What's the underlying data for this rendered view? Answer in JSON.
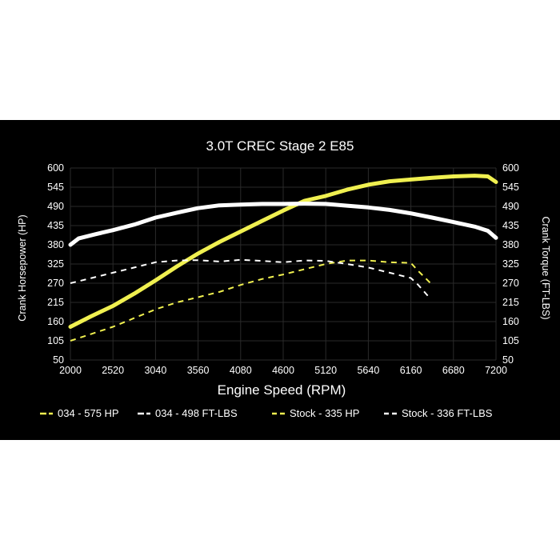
{
  "chart_data": {
    "type": "line",
    "title": "3.0T CREC Stage 2 E85",
    "xlabel": "Engine Speed (RPM)",
    "ylabel": "Crank Horsepower (HP)",
    "ylabel_right": "Crank Torque (FT-LBS)",
    "xlim": [
      2000,
      7200
    ],
    "ylim": [
      50,
      600
    ],
    "x_ticks": [
      "2000",
      "2520",
      "3040",
      "3560",
      "4080",
      "4600",
      "5120",
      "5640",
      "6160",
      "6680",
      "7200"
    ],
    "y_ticks": [
      "600",
      "545",
      "490",
      "435",
      "380",
      "325",
      "270",
      "215",
      "160",
      "105",
      "50"
    ],
    "y_ticks_right": [
      "600",
      "545",
      "490",
      "435",
      "380",
      "325",
      "270",
      "215",
      "160",
      "105",
      "50"
    ],
    "grid": true,
    "legend_position": "bottom",
    "series": [
      {
        "name": "034 - 575 HP",
        "color": "#f0f050",
        "style": "solid",
        "x": [
          2000,
          2250,
          2520,
          2780,
          3040,
          3300,
          3560,
          3820,
          4080,
          4340,
          4600,
          4860,
          5120,
          5380,
          5640,
          5900,
          6160,
          6420,
          6680,
          6940,
          7100,
          7200
        ],
        "y": [
          145,
          175,
          205,
          240,
          278,
          318,
          355,
          388,
          418,
          448,
          478,
          506,
          520,
          538,
          552,
          562,
          567,
          572,
          576,
          578,
          576,
          560
        ]
      },
      {
        "name": "034 - 498 FT-LBS",
        "color": "#ffffff",
        "style": "solid",
        "x": [
          2000,
          2100,
          2300,
          2520,
          2780,
          3040,
          3300,
          3560,
          3820,
          4080,
          4340,
          4600,
          4860,
          5120,
          5380,
          5640,
          5900,
          6160,
          6420,
          6680,
          6940,
          7100,
          7200
        ],
        "y": [
          380,
          398,
          410,
          422,
          438,
          458,
          472,
          485,
          493,
          495,
          497,
          497,
          498,
          497,
          492,
          487,
          480,
          470,
          458,
          445,
          432,
          420,
          400
        ]
      },
      {
        "name": "Stock - 335 HP",
        "color": "#f0f050",
        "style": "dashed",
        "x": [
          2000,
          2260,
          2520,
          2780,
          3040,
          3300,
          3560,
          3820,
          4080,
          4340,
          4600,
          4860,
          5120,
          5380,
          5640,
          5900,
          6160,
          6250,
          6400
        ],
        "y": [
          105,
          125,
          145,
          170,
          195,
          215,
          230,
          245,
          265,
          282,
          295,
          310,
          325,
          335,
          335,
          330,
          328,
          305,
          270
        ]
      },
      {
        "name": "Stock - 336 FT-LBS",
        "color": "#ffffff",
        "style": "dashed",
        "x": [
          2000,
          2260,
          2520,
          2780,
          3040,
          3300,
          3560,
          3820,
          4080,
          4340,
          4600,
          4860,
          5120,
          5380,
          5640,
          5900,
          6160,
          6250,
          6400
        ],
        "y": [
          270,
          285,
          300,
          315,
          330,
          335,
          336,
          332,
          337,
          334,
          330,
          335,
          334,
          325,
          315,
          300,
          285,
          265,
          225
        ]
      }
    ]
  }
}
